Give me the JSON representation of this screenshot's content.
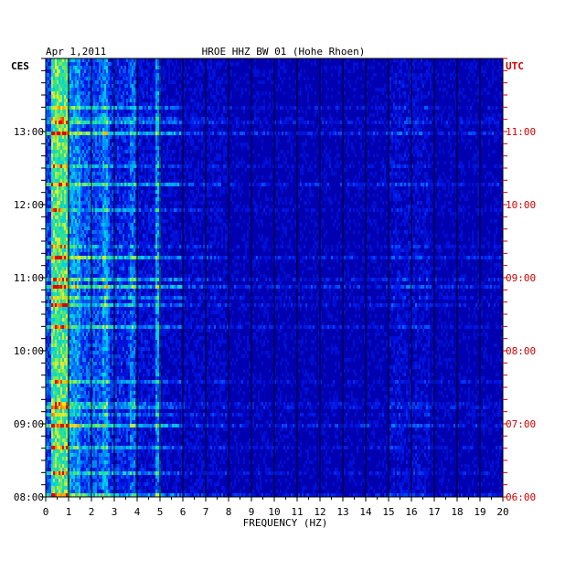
{
  "chart_data": {
    "type": "heatmap",
    "date": "Apr 1,2011",
    "title": "HROE HHZ BW 01 (Hohe Rhoen)",
    "xlabel": "FREQUENCY (HZ)",
    "left_axis_label": "CES",
    "right_axis_label": "UTC",
    "x_ticks": [
      "0",
      "1",
      "2",
      "3",
      "4",
      "5",
      "6",
      "7",
      "8",
      "9",
      "10",
      "11",
      "12",
      "13",
      "14",
      "15",
      "16",
      "17",
      "18",
      "19",
      "20"
    ],
    "xlim": [
      0,
      20
    ],
    "left_ticks": [
      "13:00",
      "12:00",
      "11:00",
      "10:00",
      "09:00",
      "08:00"
    ],
    "right_ticks": [
      "11:00",
      "10:00",
      "09:00",
      "08:00",
      "07:00",
      "06:00"
    ],
    "grid": true,
    "colors": {
      "background": "#0000b0",
      "grid": "#000000",
      "right_axis": "#cc0000",
      "text": "#000000"
    }
  }
}
